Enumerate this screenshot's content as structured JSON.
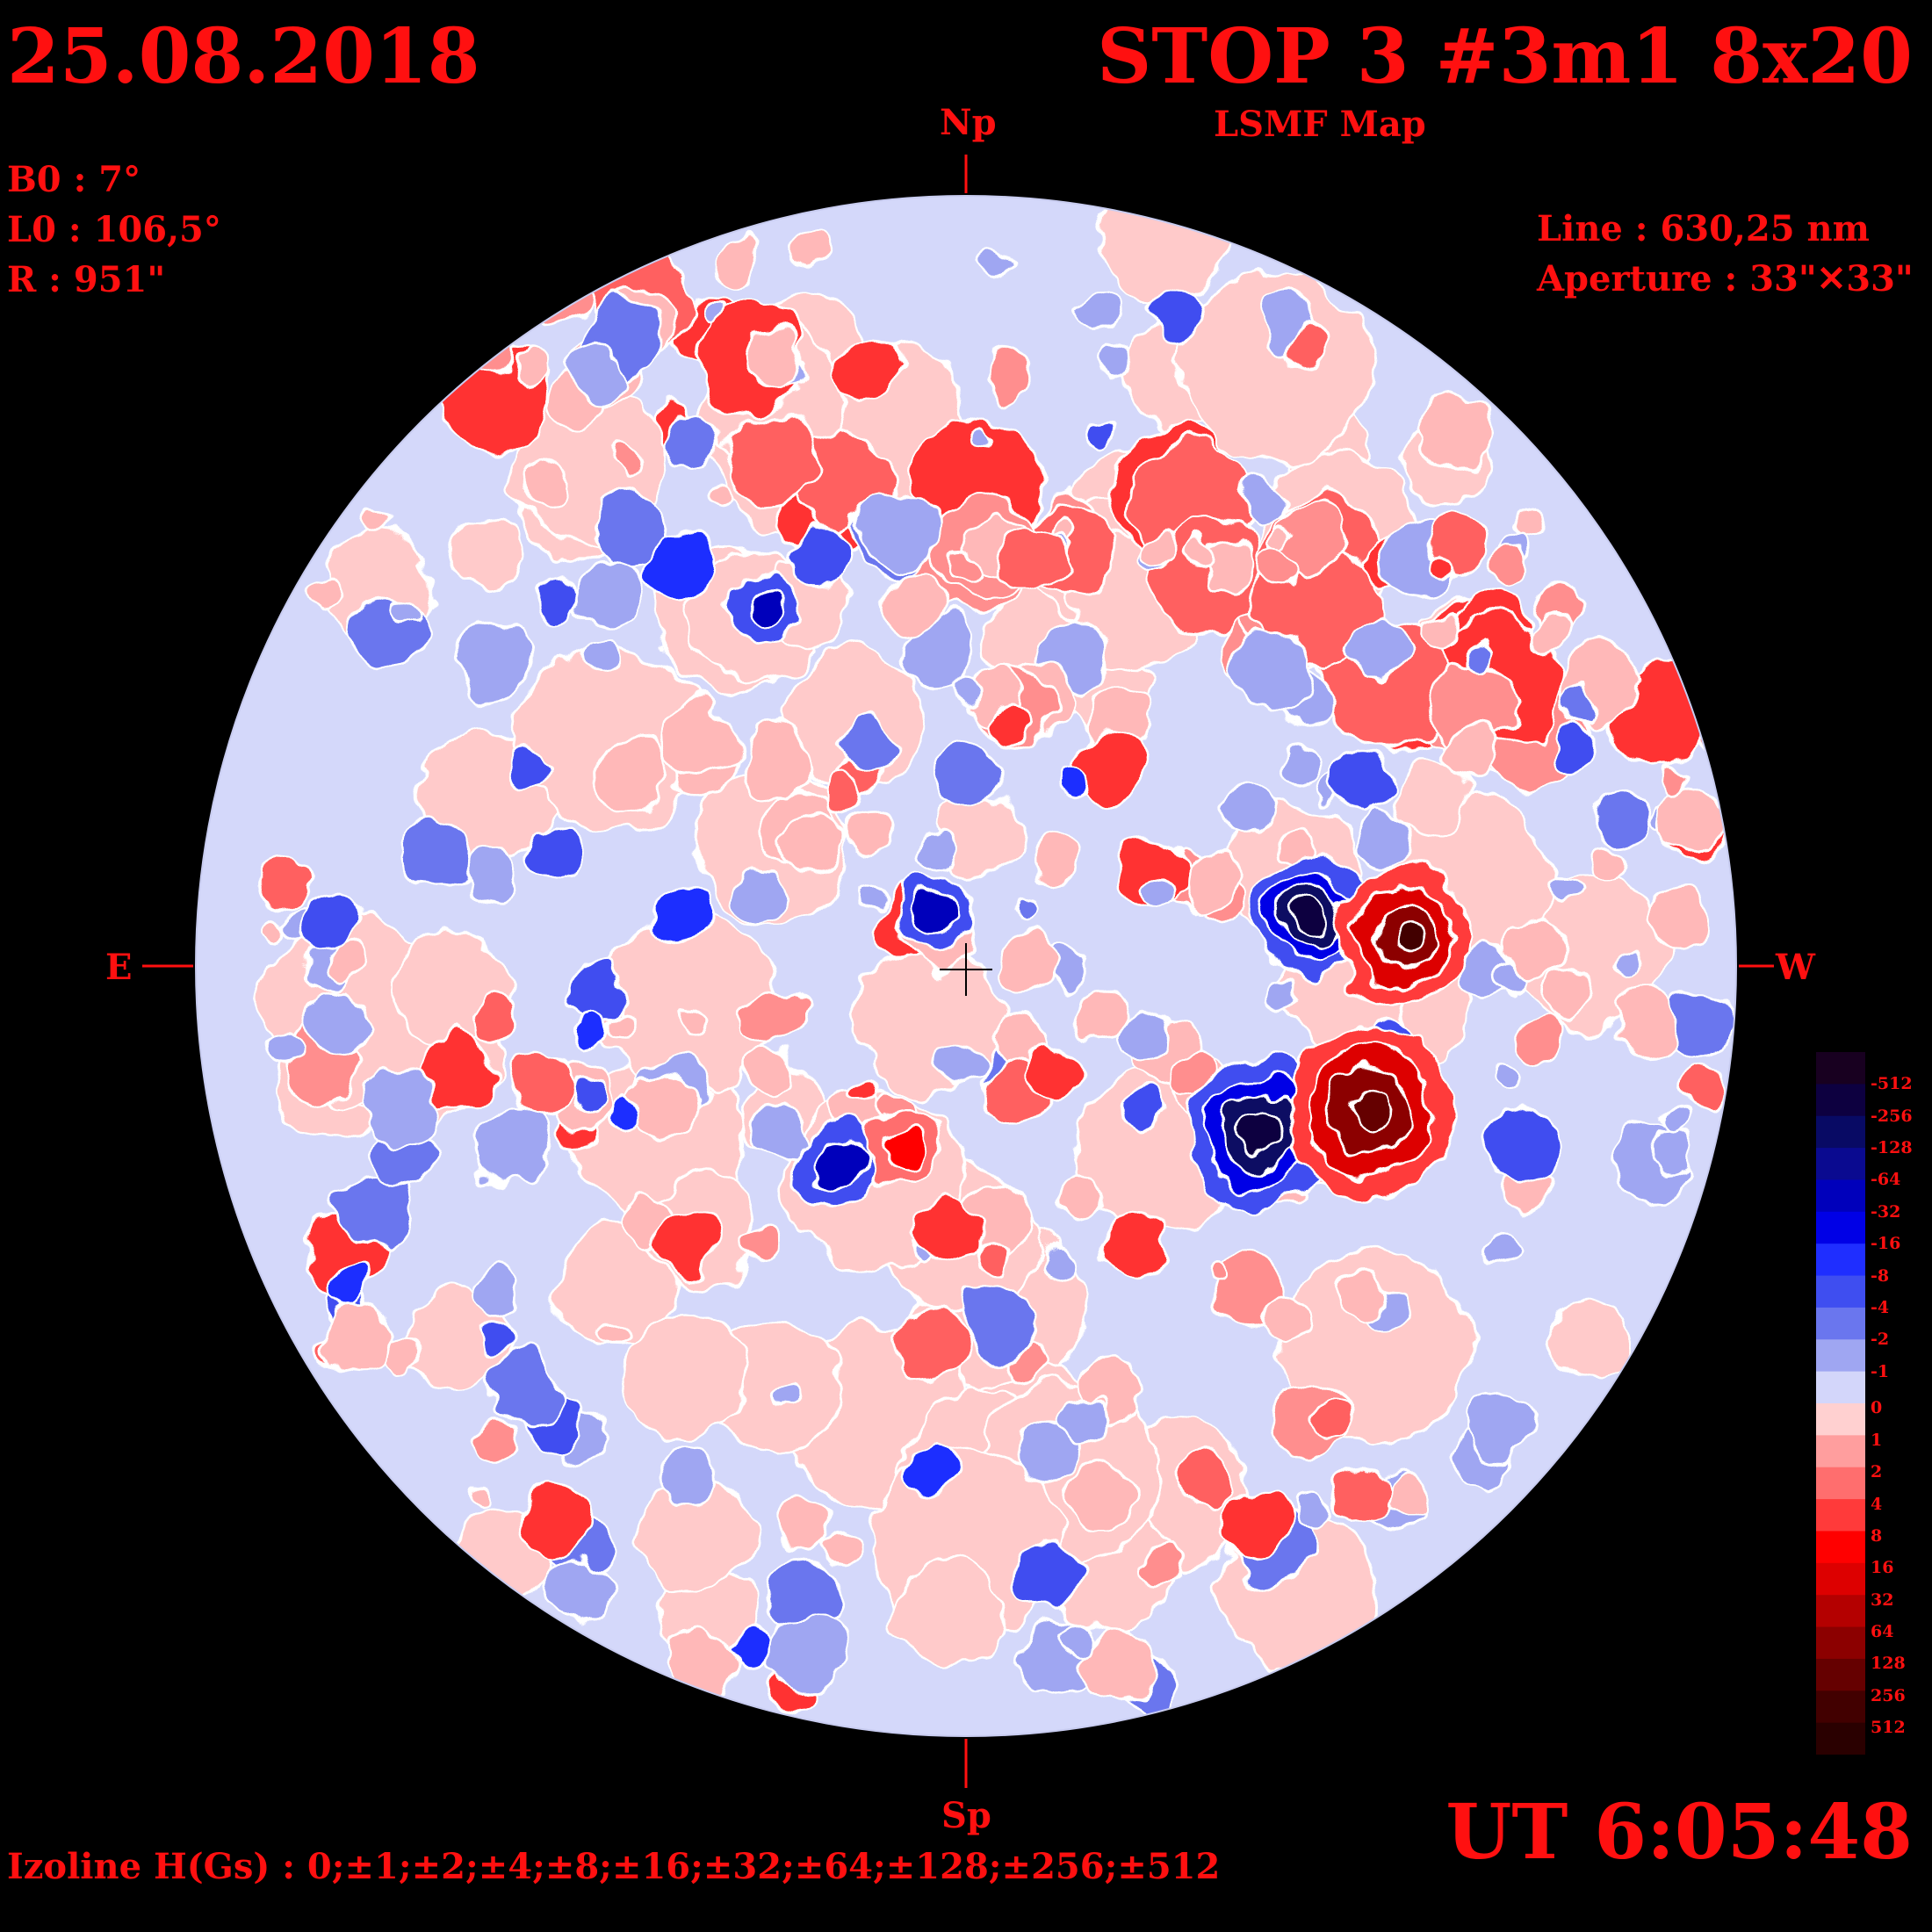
{
  "header": {
    "date": "25.08.2018",
    "title": "STOP 3 #3m1 8x20",
    "subtitle": "LSMF  Map"
  },
  "params": {
    "b0": "B0 : 7°",
    "l0": "L0 : 106,5°",
    "r": "R  : 951\""
  },
  "instrument": {
    "line": "Line :  630,25 nm",
    "aperture": "Aperture : 33\"✕33\""
  },
  "directions": {
    "north": "Np",
    "south": "Sp",
    "east": "E",
    "west": "W"
  },
  "time": "UT 6:05:48",
  "izoline": "Izoline H(Gs) : 0;±1;±2;±4;±8;±16;±32;±64;±128;±256;±512",
  "scale": {
    "labels": [
      "-512",
      "-256",
      "-128",
      "-64",
      "-32",
      "-16",
      "-8",
      "-4",
      "-2",
      "-1",
      "0",
      "1",
      "2",
      "4",
      "8",
      "16",
      "32",
      "64",
      "128",
      "256",
      "512"
    ],
    "colors": [
      "#180020",
      "#0d0040",
      "#080a64",
      "#0a0a90",
      "#0000bb",
      "#0000e6",
      "#1f2eff",
      "#3f4ef0",
      "#6a76ee",
      "#9fa6f2",
      "#d3d6fa",
      "#ffd0d0",
      "#ff9e9e",
      "#ff6e6e",
      "#ff3a3a",
      "#ff0000",
      "#dd0000",
      "#b40000",
      "#8c0000",
      "#650000",
      "#420000",
      "#2a0000"
    ]
  },
  "colors": {
    "text": "#ff1010",
    "background": "#000000"
  }
}
